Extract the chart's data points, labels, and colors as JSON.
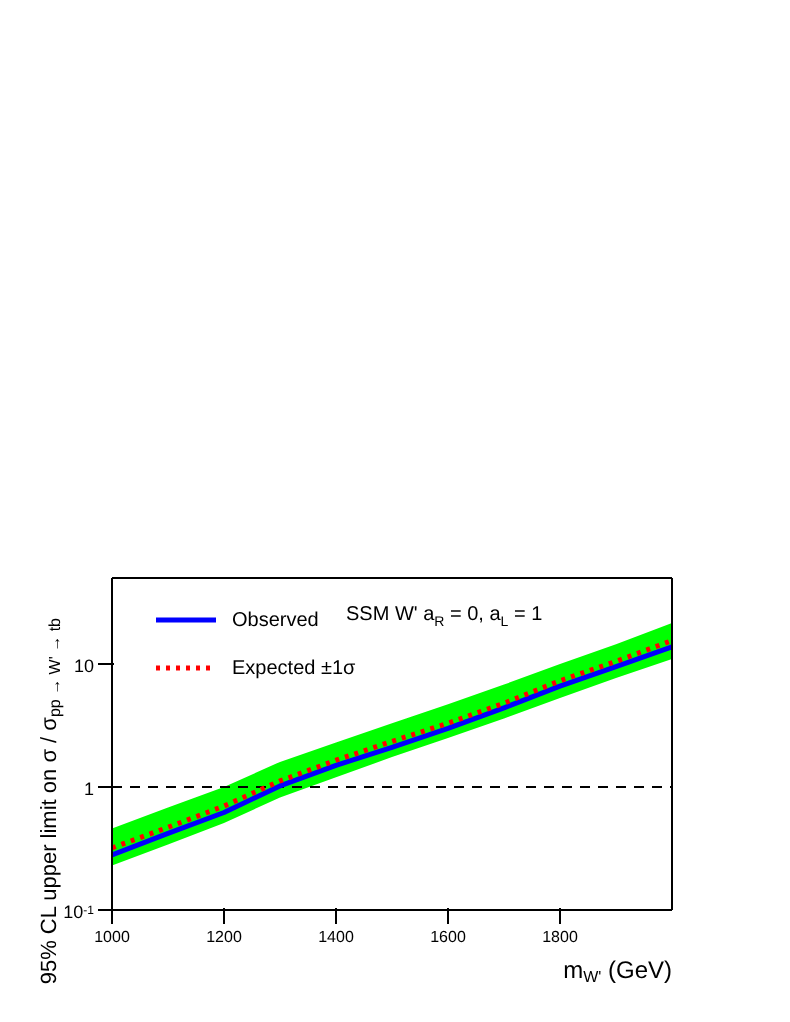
{
  "chart_data": {
    "type": "line",
    "xlabel": "m$_{W'}$ (GeV)",
    "ylabel": "95% CL upper limit on σ / σ$_{pp → W' → tb}$",
    "annotations": [
      "SSM W' a$_{R}$ = 0, a$_{L}$ = 1"
    ],
    "x": [
      1000,
      1100,
      1200,
      1300,
      1400,
      1500,
      1600,
      1700,
      1800,
      1900,
      2000
    ],
    "series": [
      {
        "name": "Observed",
        "color": "#0000ff",
        "line_style": "solid",
        "values": [
          0.28,
          0.42,
          0.62,
          1.02,
          1.5,
          2.1,
          3.0,
          4.4,
          6.6,
          9.5,
          13.8
        ]
      },
      {
        "name": "Expected ±1σ",
        "color": "#ff0000",
        "line_style": "dotted",
        "values": [
          0.32,
          0.47,
          0.7,
          1.12,
          1.65,
          2.35,
          3.3,
          4.8,
          7.3,
          10.5,
          15.5
        ],
        "lower": [
          0.23,
          0.34,
          0.51,
          0.82,
          1.2,
          1.75,
          2.5,
          3.6,
          5.3,
          7.7,
          11
        ],
        "upper": [
          0.46,
          0.68,
          1.0,
          1.6,
          2.3,
          3.3,
          4.7,
          6.8,
          10,
          14.5,
          21.5
        ]
      }
    ],
    "log": "y",
    "xlim": [
      1000,
      2000
    ],
    "xticks": [
      1000,
      1200,
      1400,
      1600,
      1800
    ],
    "ylim": [
      0.1,
      50
    ],
    "yticks": [
      {
        "value": 0.1,
        "label": "10$^{-1}$"
      },
      1,
      10
    ],
    "ref_lines": [
      {
        "axis": "y",
        "value": 1,
        "line_style": "dashed",
        "color": "#000000"
      }
    ],
    "legend": "top left",
    "grid": false
  }
}
